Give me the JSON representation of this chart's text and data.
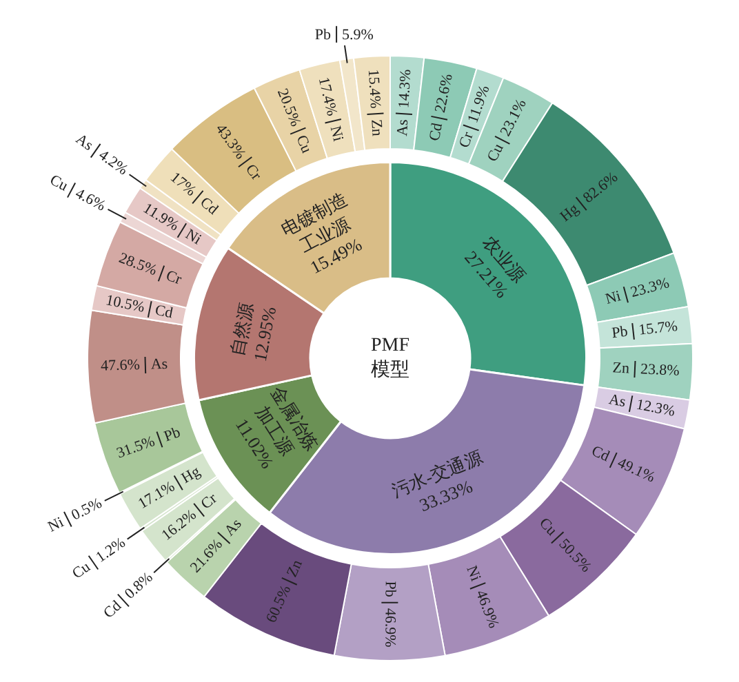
{
  "chart_data": [
    {
      "type": "other",
      "title": "PMF 模型",
      "categories": [
        "农业源",
        "污水-交通源",
        "金属冶炼加工源",
        "自然源",
        "电镀制造工业源"
      ],
      "values": [
        27.21,
        33.33,
        11.02,
        12.95,
        15.49
      ],
      "value_labels": [
        "27.21%",
        "33.33%",
        "11.02%",
        "12.95%",
        "15.49%"
      ],
      "colors": [
        "#3f9e80",
        "#8d7cab",
        "#6b9155",
        "#b47670",
        "#d9bd87"
      ]
    },
    {
      "type": "other",
      "categories": [
        "As",
        "Cd",
        "Cr",
        "Cu",
        "Hg",
        "Ni",
        "Pb",
        "Zn",
        "As",
        "Cd",
        "Cu",
        "Ni",
        "Pb",
        "Zn",
        "As",
        "Cd",
        "Cr",
        "Cu",
        "Hg",
        "Ni",
        "Pb",
        "As",
        "Cd",
        "Cr",
        "Cu",
        "Ni",
        "As",
        "Cd",
        "Cr",
        "Cu",
        "Ni",
        "Pb",
        "Zn"
      ],
      "series": [
        {
          "values": [
            14.3,
            22.6,
            11.9,
            23.1,
            82.6,
            23.3,
            15.7,
            23.8,
            null,
            null,
            null,
            null,
            null,
            null,
            null,
            null,
            null,
            null,
            null,
            null,
            null,
            null,
            null,
            null,
            null,
            null,
            null,
            null,
            null,
            null,
            null,
            null,
            null
          ],
          "value_labels": [
            "14.3%",
            "22.6%",
            "11.9%",
            "23.1%",
            "82.6%",
            "23.3%",
            "15.7%",
            "23.8%",
            null,
            null,
            null,
            null,
            null,
            null,
            null,
            null,
            null,
            null,
            null,
            null,
            null,
            null,
            null,
            null,
            null,
            null,
            null,
            null,
            null,
            null,
            null,
            null,
            null
          ],
          "colors": [
            "#b3dccf",
            "#8dcab5",
            "#b3dccf",
            "#9fd2bf",
            "#3d8a70",
            "#8dcab5",
            "#c4e4d9",
            "#9fd2bf",
            null,
            null,
            null,
            null,
            null,
            null,
            null,
            null,
            null,
            null,
            null,
            null,
            null,
            null,
            null,
            null,
            null,
            null,
            null,
            null,
            null,
            null,
            null,
            null,
            null
          ]
        },
        {
          "values": [
            null,
            null,
            null,
            null,
            null,
            null,
            null,
            null,
            12.3,
            49.1,
            50.5,
            46.9,
            46.9,
            60.5,
            null,
            null,
            null,
            null,
            null,
            null,
            null,
            null,
            null,
            null,
            null,
            null,
            null,
            null,
            null,
            null,
            null,
            null,
            null
          ],
          "value_labels": [
            null,
            null,
            null,
            null,
            null,
            null,
            null,
            null,
            "12.3%",
            "49.1%",
            "50.5%",
            "46.9%",
            "46.9%",
            "60.5%",
            null,
            null,
            null,
            null,
            null,
            null,
            null,
            null,
            null,
            null,
            null,
            null,
            null,
            null,
            null,
            null,
            null,
            null,
            null
          ],
          "colors": [
            null,
            null,
            null,
            null,
            null,
            null,
            null,
            null,
            "#d9cce3",
            "#a58cb8",
            "#8a6a9e",
            "#a58cb8",
            "#b3a0c5",
            "#694b7d",
            null,
            null,
            null,
            null,
            null,
            null,
            null,
            null,
            null,
            null,
            null,
            null,
            null,
            null,
            null,
            null,
            null,
            null,
            null
          ]
        },
        {
          "values": [
            null,
            null,
            null,
            null,
            null,
            null,
            null,
            null,
            null,
            null,
            null,
            null,
            null,
            null,
            21.6,
            0.8,
            16.2,
            1.2,
            17.1,
            0.5,
            31.5,
            null,
            null,
            null,
            null,
            null,
            null,
            null,
            null,
            null,
            null,
            null,
            null
          ],
          "value_labels": [
            null,
            null,
            null,
            null,
            null,
            null,
            null,
            null,
            null,
            null,
            null,
            null,
            null,
            null,
            "21.6%",
            "0.8%",
            "16.2%",
            "1.2%",
            "17.1%",
            "0.5%",
            "31.5%",
            null,
            null,
            null,
            null,
            null,
            null,
            null,
            null,
            null,
            null,
            null,
            null
          ],
          "colors": [
            null,
            null,
            null,
            null,
            null,
            null,
            null,
            null,
            null,
            null,
            null,
            null,
            null,
            null,
            "#b9d3ad",
            "#cfe0c6",
            "#d4e4cc",
            "#d4e4cc",
            "#d4e4cc",
            "#d4e4cc",
            "#a8c79a",
            null,
            null,
            null,
            null,
            null,
            null,
            null,
            null,
            null,
            null,
            null,
            null
          ]
        },
        {
          "values": [
            null,
            null,
            null,
            null,
            null,
            null,
            null,
            null,
            null,
            null,
            null,
            null,
            null,
            null,
            null,
            null,
            null,
            null,
            null,
            null,
            null,
            47.6,
            10.5,
            28.5,
            4.6,
            11.9,
            null,
            null,
            null,
            null,
            null,
            null,
            null
          ],
          "value_labels": [
            null,
            null,
            null,
            null,
            null,
            null,
            null,
            null,
            null,
            null,
            null,
            null,
            null,
            null,
            null,
            null,
            null,
            null,
            null,
            null,
            null,
            "47.6%",
            "10.5%",
            "28.5%",
            "4.6%",
            "11.9%",
            null,
            null,
            null,
            null,
            null,
            null,
            null
          ],
          "colors": [
            null,
            null,
            null,
            null,
            null,
            null,
            null,
            null,
            null,
            null,
            null,
            null,
            null,
            null,
            null,
            null,
            null,
            null,
            null,
            null,
            null,
            "#c08f88",
            "#e6c8c6",
            "#d4a9a4",
            "#ecd6d4",
            "#e6c8c6",
            null,
            null,
            null,
            null,
            null,
            null,
            null
          ]
        },
        {
          "values": [
            null,
            null,
            null,
            null,
            null,
            null,
            null,
            null,
            null,
            null,
            null,
            null,
            null,
            null,
            null,
            null,
            null,
            null,
            null,
            null,
            null,
            null,
            null,
            null,
            null,
            null,
            4.2,
            17,
            43.3,
            20.5,
            17.4,
            5.9,
            15.4
          ],
          "value_labels": [
            null,
            null,
            null,
            null,
            null,
            null,
            null,
            null,
            null,
            null,
            null,
            null,
            null,
            null,
            null,
            null,
            null,
            null,
            null,
            null,
            null,
            null,
            null,
            null,
            null,
            null,
            "4.2%",
            "17%",
            "43.3%",
            "20.5%",
            "17.4%",
            "5.9%",
            "15.4%"
          ],
          "colors": [
            null,
            null,
            null,
            null,
            null,
            null,
            null,
            null,
            null,
            null,
            null,
            null,
            null,
            null,
            null,
            null,
            null,
            null,
            null,
            null,
            null,
            null,
            null,
            null,
            null,
            null,
            "#f0e2c3",
            "#efdfb9",
            "#d9be82",
            "#e8d3a6",
            "#efe0bd",
            "#f2e6ca",
            "#efe0bd"
          ]
        }
      ]
    }
  ]
}
